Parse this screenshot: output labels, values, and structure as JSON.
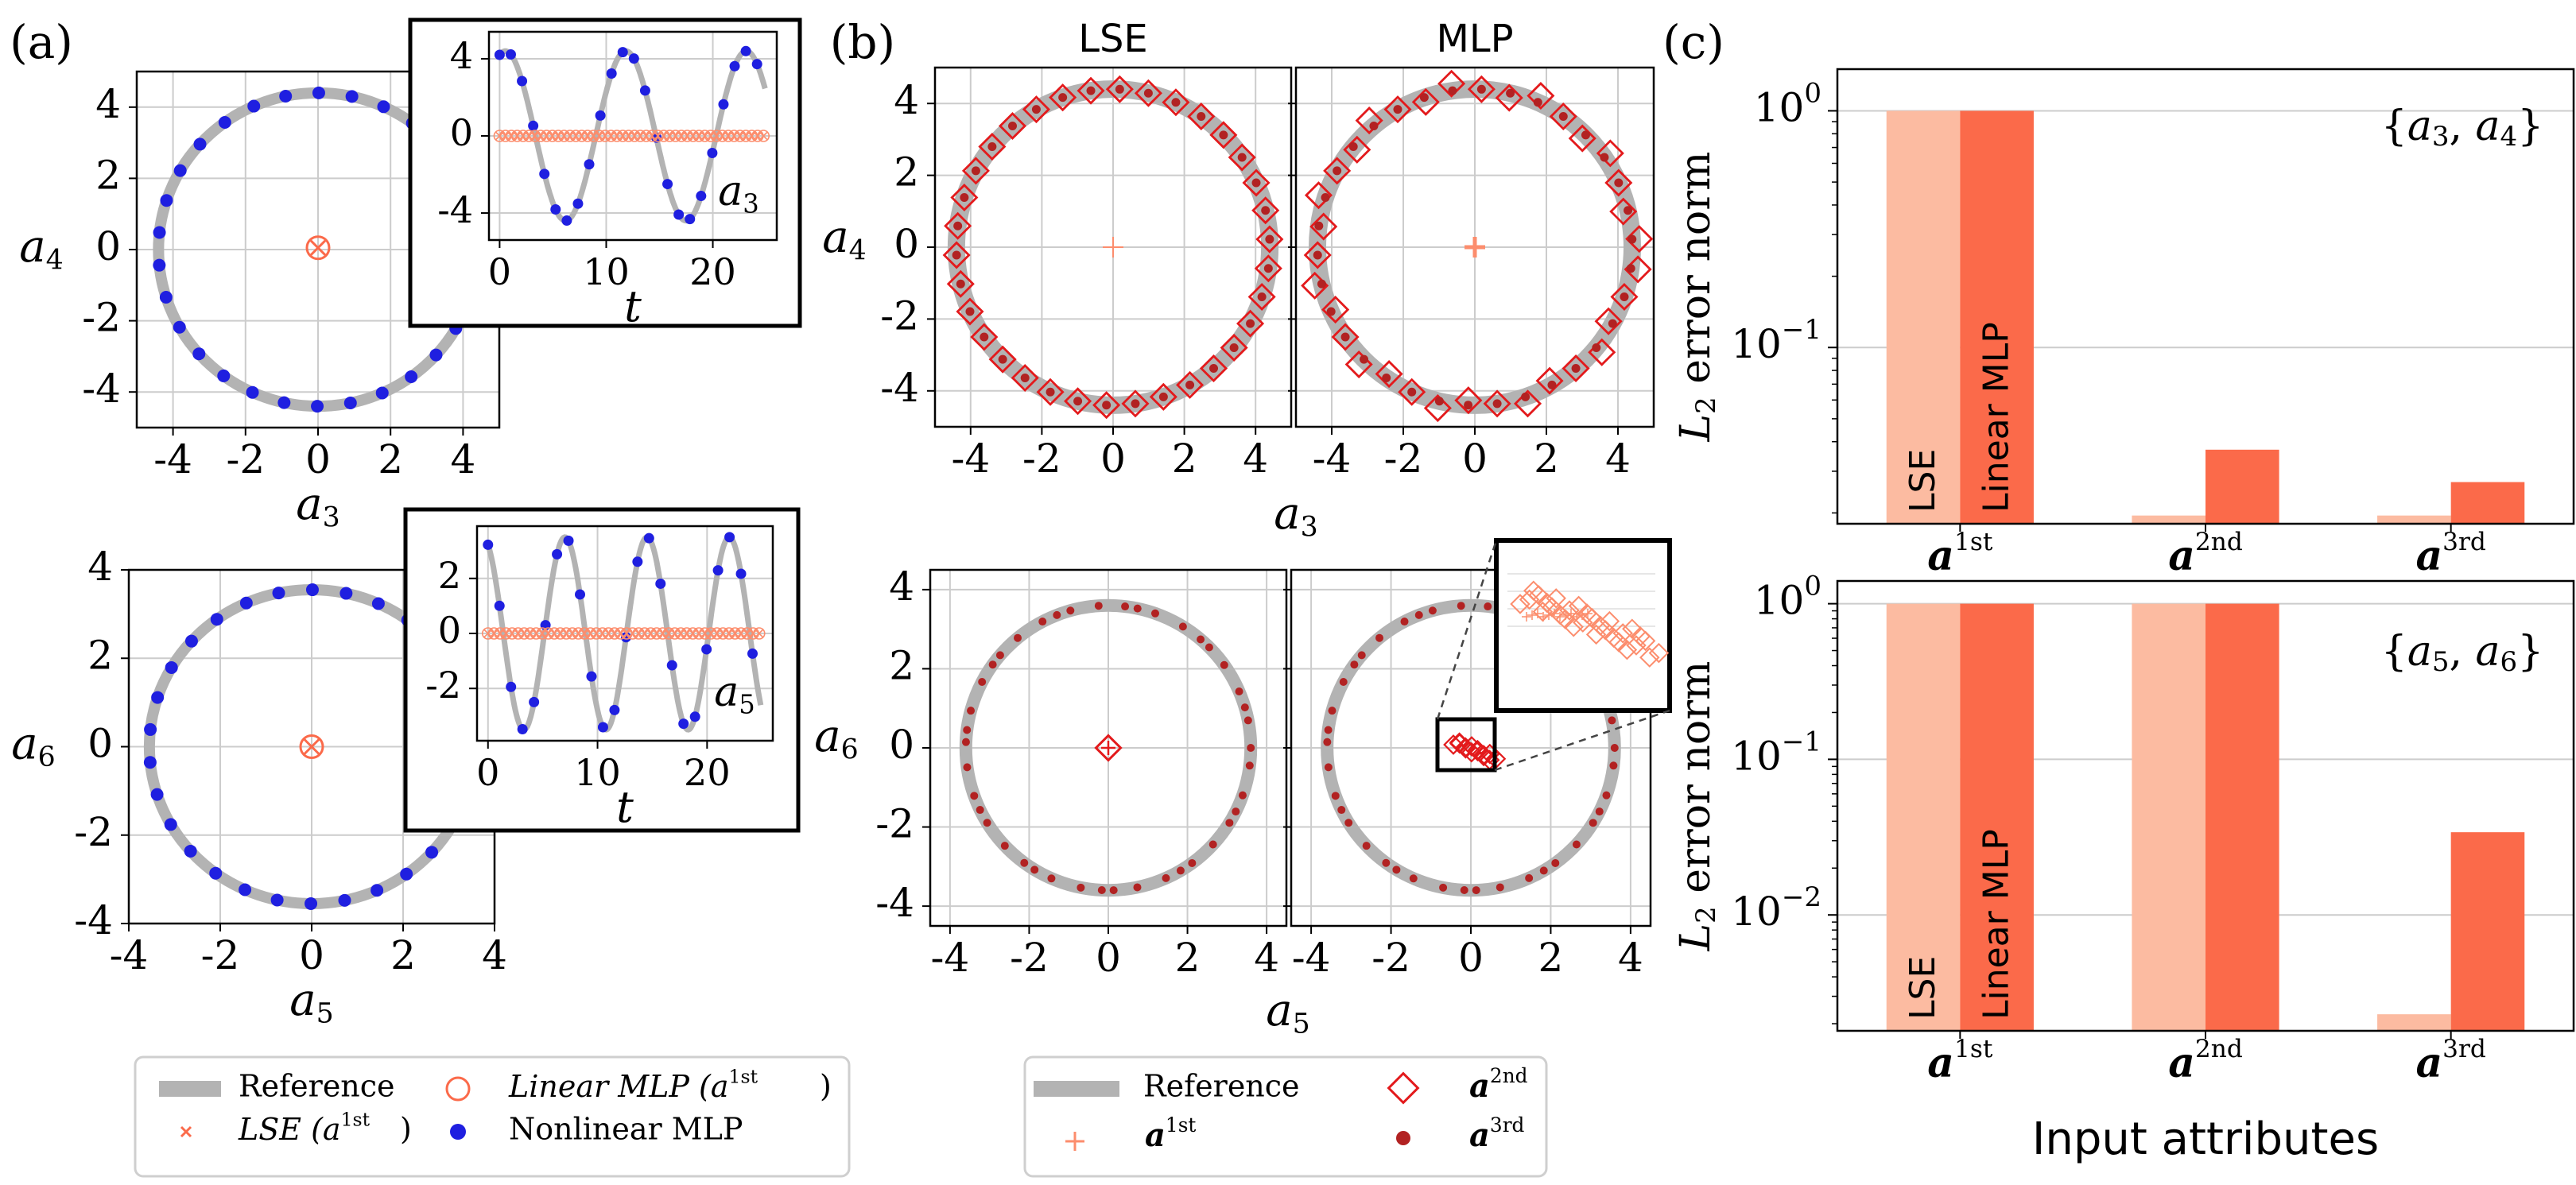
{
  "panel_labels": {
    "a": "(a)",
    "b": "(b)",
    "c": "(c)"
  },
  "colors": {
    "reference": "#b3b3b3",
    "lse": "#fcbba1",
    "linear_mlp": "#fb6a4a",
    "nonlinear": "#1f1fe0",
    "red_marker": "#e31a1c",
    "dark_red": "#b22222",
    "light_red": "#fc8d6d",
    "grid": "#cccccc"
  },
  "legend_a": {
    "reference": "Reference",
    "lse": "LSE (a1st)",
    "linear": "Linear MLP (a1st)",
    "nonlinear": "Nonlinear MLP"
  },
  "legend_b": {
    "reference": "Reference",
    "a1": "a1st",
    "a2": "a2nd",
    "a3": "a3rd"
  },
  "chart_data": [
    {
      "id": "a-top",
      "type": "scatter",
      "xlabel": "a3",
      "ylabel": "a4",
      "xlim": [
        -5,
        5
      ],
      "ylim": [
        -5,
        5
      ],
      "xticks": [
        "-4",
        "-2",
        "0",
        "2",
        "4"
      ],
      "yticks": [
        "4",
        "2",
        "0",
        "-2",
        "-4"
      ],
      "reference_radius": 4.4,
      "nonlinear_count": 30,
      "linear_center": [
        0,
        0.05
      ],
      "inset": {
        "xlabel": "t",
        "ylabel": "a3",
        "xlim": [
          -1,
          26
        ],
        "ylim": [
          -5.4,
          5.4
        ],
        "amplitude": 4.4,
        "period": 11.3,
        "xticks": [
          "0",
          "10",
          "20"
        ],
        "yticks": [
          "4",
          "0",
          "-4"
        ]
      }
    },
    {
      "id": "a-bottom",
      "type": "scatter",
      "xlabel": "a5",
      "ylabel": "a6",
      "xlim": [
        -4,
        4
      ],
      "ylim": [
        -4,
        4
      ],
      "xticks": [
        "-4",
        "-2",
        "0",
        "2",
        "4"
      ],
      "yticks": [
        "4",
        "2",
        "0",
        "-2",
        "-4"
      ],
      "reference_radius": 3.55,
      "nonlinear_count": 30,
      "linear_center": [
        0,
        0
      ],
      "inset": {
        "xlabel": "t",
        "ylabel": "a5",
        "xlim": [
          -1,
          26
        ],
        "ylim": [
          -3.9,
          3.9
        ],
        "amplitude": 3.5,
        "period": 7.5,
        "xticks": [
          "0",
          "10",
          "20"
        ],
        "yticks": [
          "2",
          "0",
          "-2"
        ]
      }
    },
    {
      "id": "b-top",
      "type": "scatter",
      "titles": [
        "LSE",
        "MLP"
      ],
      "xlabel": "a3",
      "ylabel": "a4",
      "xlim": [
        -5,
        5
      ],
      "ylim": [
        -5,
        5
      ],
      "xticks": [
        "-4",
        "-2",
        "0",
        "2",
        "4"
      ],
      "yticks": [
        "4",
        "2",
        "0",
        "-2",
        "-4"
      ],
      "reference_radius": 4.4,
      "marker_count": 34
    },
    {
      "id": "b-bottom",
      "type": "scatter",
      "xlabel": "a5",
      "ylabel": "a6",
      "xlim": [
        -4.5,
        4.5
      ],
      "ylim": [
        -4.5,
        4.5
      ],
      "xticks": [
        "-4",
        "-2",
        "0",
        "2",
        "4"
      ],
      "yticks": [
        "4",
        "2",
        "0",
        "-2",
        "-4"
      ],
      "reference_radius": 3.6,
      "dot_count": 42
    },
    {
      "id": "c-top",
      "type": "bar",
      "log_scale": true,
      "ylabel": "L2 error norm",
      "annotation": "{a3, a4}",
      "categories": [
        "a1st",
        "a2nd",
        "a3rd"
      ],
      "ylim": [
        0.018,
        1.5
      ],
      "yticks": [
        "100",
        "10−1"
      ],
      "series": [
        {
          "name": "LSE",
          "values": [
            1.0,
            0.0195,
            0.0195
          ]
        },
        {
          "name": "Linear MLP",
          "values": [
            1.0,
            0.037,
            0.027
          ]
        }
      ]
    },
    {
      "id": "c-bottom",
      "type": "bar",
      "log_scale": true,
      "ylabel": "L2 error norm",
      "annotation": "{a5, a6}",
      "xlabel": "Input attributes",
      "categories": [
        "a1st",
        "a2nd",
        "a3rd"
      ],
      "ylim": [
        0.0018,
        1.4
      ],
      "yticks": [
        "100",
        "10−1",
        "10−2"
      ],
      "series": [
        {
          "name": "LSE",
          "values": [
            1.0,
            1.0,
            0.0023
          ]
        },
        {
          "name": "Linear MLP",
          "values": [
            1.0,
            1.0,
            0.034
          ]
        }
      ]
    }
  ]
}
